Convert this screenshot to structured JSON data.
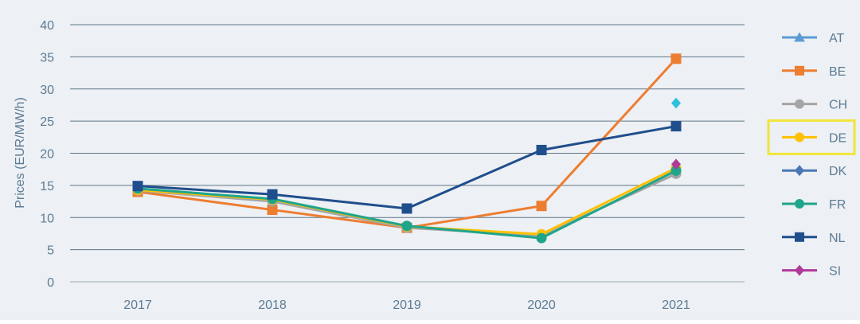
{
  "chart_data": {
    "type": "line",
    "title": "",
    "xlabel": "",
    "ylabel": "Prices (EUR/MW/h)",
    "ylim": [
      0,
      40
    ],
    "yticks": [
      0,
      5,
      10,
      15,
      20,
      25,
      30,
      35,
      40
    ],
    "categories": [
      "2017",
      "2018",
      "2019",
      "2020",
      "2021"
    ],
    "grid": true,
    "legend_position": "right",
    "highlighted_legend_entry": "DE",
    "highlight_color": "#f0e53a",
    "series": [
      {
        "name": "AT",
        "color": "#5b9bd5",
        "marker": "triangle",
        "values": [
          null,
          null,
          null,
          null,
          27.8
        ],
        "last_marker": "diamond",
        "last_marker_color": "#2fc1dc"
      },
      {
        "name": "BE",
        "color": "#ed7d31",
        "marker": "square",
        "values": [
          14.0,
          11.2,
          8.4,
          11.8,
          34.7
        ]
      },
      {
        "name": "CH",
        "color": "#a5a5a5",
        "marker": "circle",
        "values": [
          14.2,
          12.5,
          8.4,
          7.2,
          16.8
        ]
      },
      {
        "name": "DE",
        "color": "#ffc000",
        "marker": "circle",
        "values": [
          14.3,
          12.8,
          8.6,
          7.4,
          17.7
        ]
      },
      {
        "name": "DK",
        "color": "#4a78b5",
        "marker": "diamond",
        "values": [
          null,
          null,
          null,
          null,
          17.2
        ]
      },
      {
        "name": "FR",
        "color": "#1fa58a",
        "marker": "circle",
        "values": [
          14.5,
          12.9,
          8.7,
          6.8,
          17.3
        ]
      },
      {
        "name": "NL",
        "color": "#1f4e8c",
        "marker": "square",
        "values": [
          14.9,
          13.6,
          11.4,
          20.5,
          24.2
        ]
      },
      {
        "name": "SI",
        "color": "#b0399a",
        "marker": "diamond",
        "values": [
          null,
          null,
          null,
          null,
          18.3
        ]
      }
    ]
  }
}
